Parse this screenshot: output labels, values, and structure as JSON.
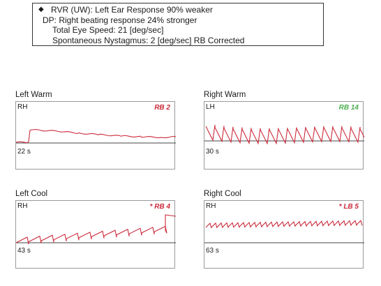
{
  "summary": {
    "bullet": "◆",
    "rvr": "RVR (UW): Left Ear Response 90% weaker",
    "dp": "DP: Right beating response 24% stronger",
    "total_eye_speed": "Total Eye Speed: 21 [deg/sec]",
    "spontaneous": "Spontaneous Nystagmus:  2 [deg/sec] RB  Corrected"
  },
  "colors": {
    "slow": "#3fae3f",
    "fast": "#cc2b3b",
    "axis": "#444444"
  },
  "panels": [
    {
      "title": "Left Warm",
      "direction": "RH",
      "response": "RB 2",
      "response_color": "#cc2b3b",
      "duration": "22 s"
    },
    {
      "title": "Right Warm",
      "direction": "LH",
      "response": "RB 14",
      "response_color": "#4caf50",
      "duration": "30 s"
    },
    {
      "title": "Left Cool",
      "direction": "RH",
      "response": "* RB 4",
      "response_color": "#cc2b3b",
      "duration": "43 s"
    },
    {
      "title": "Right Cool",
      "direction": "RH",
      "response": "* LB 5",
      "response_color": "#cc2b3b",
      "duration": "63 s"
    }
  ]
}
